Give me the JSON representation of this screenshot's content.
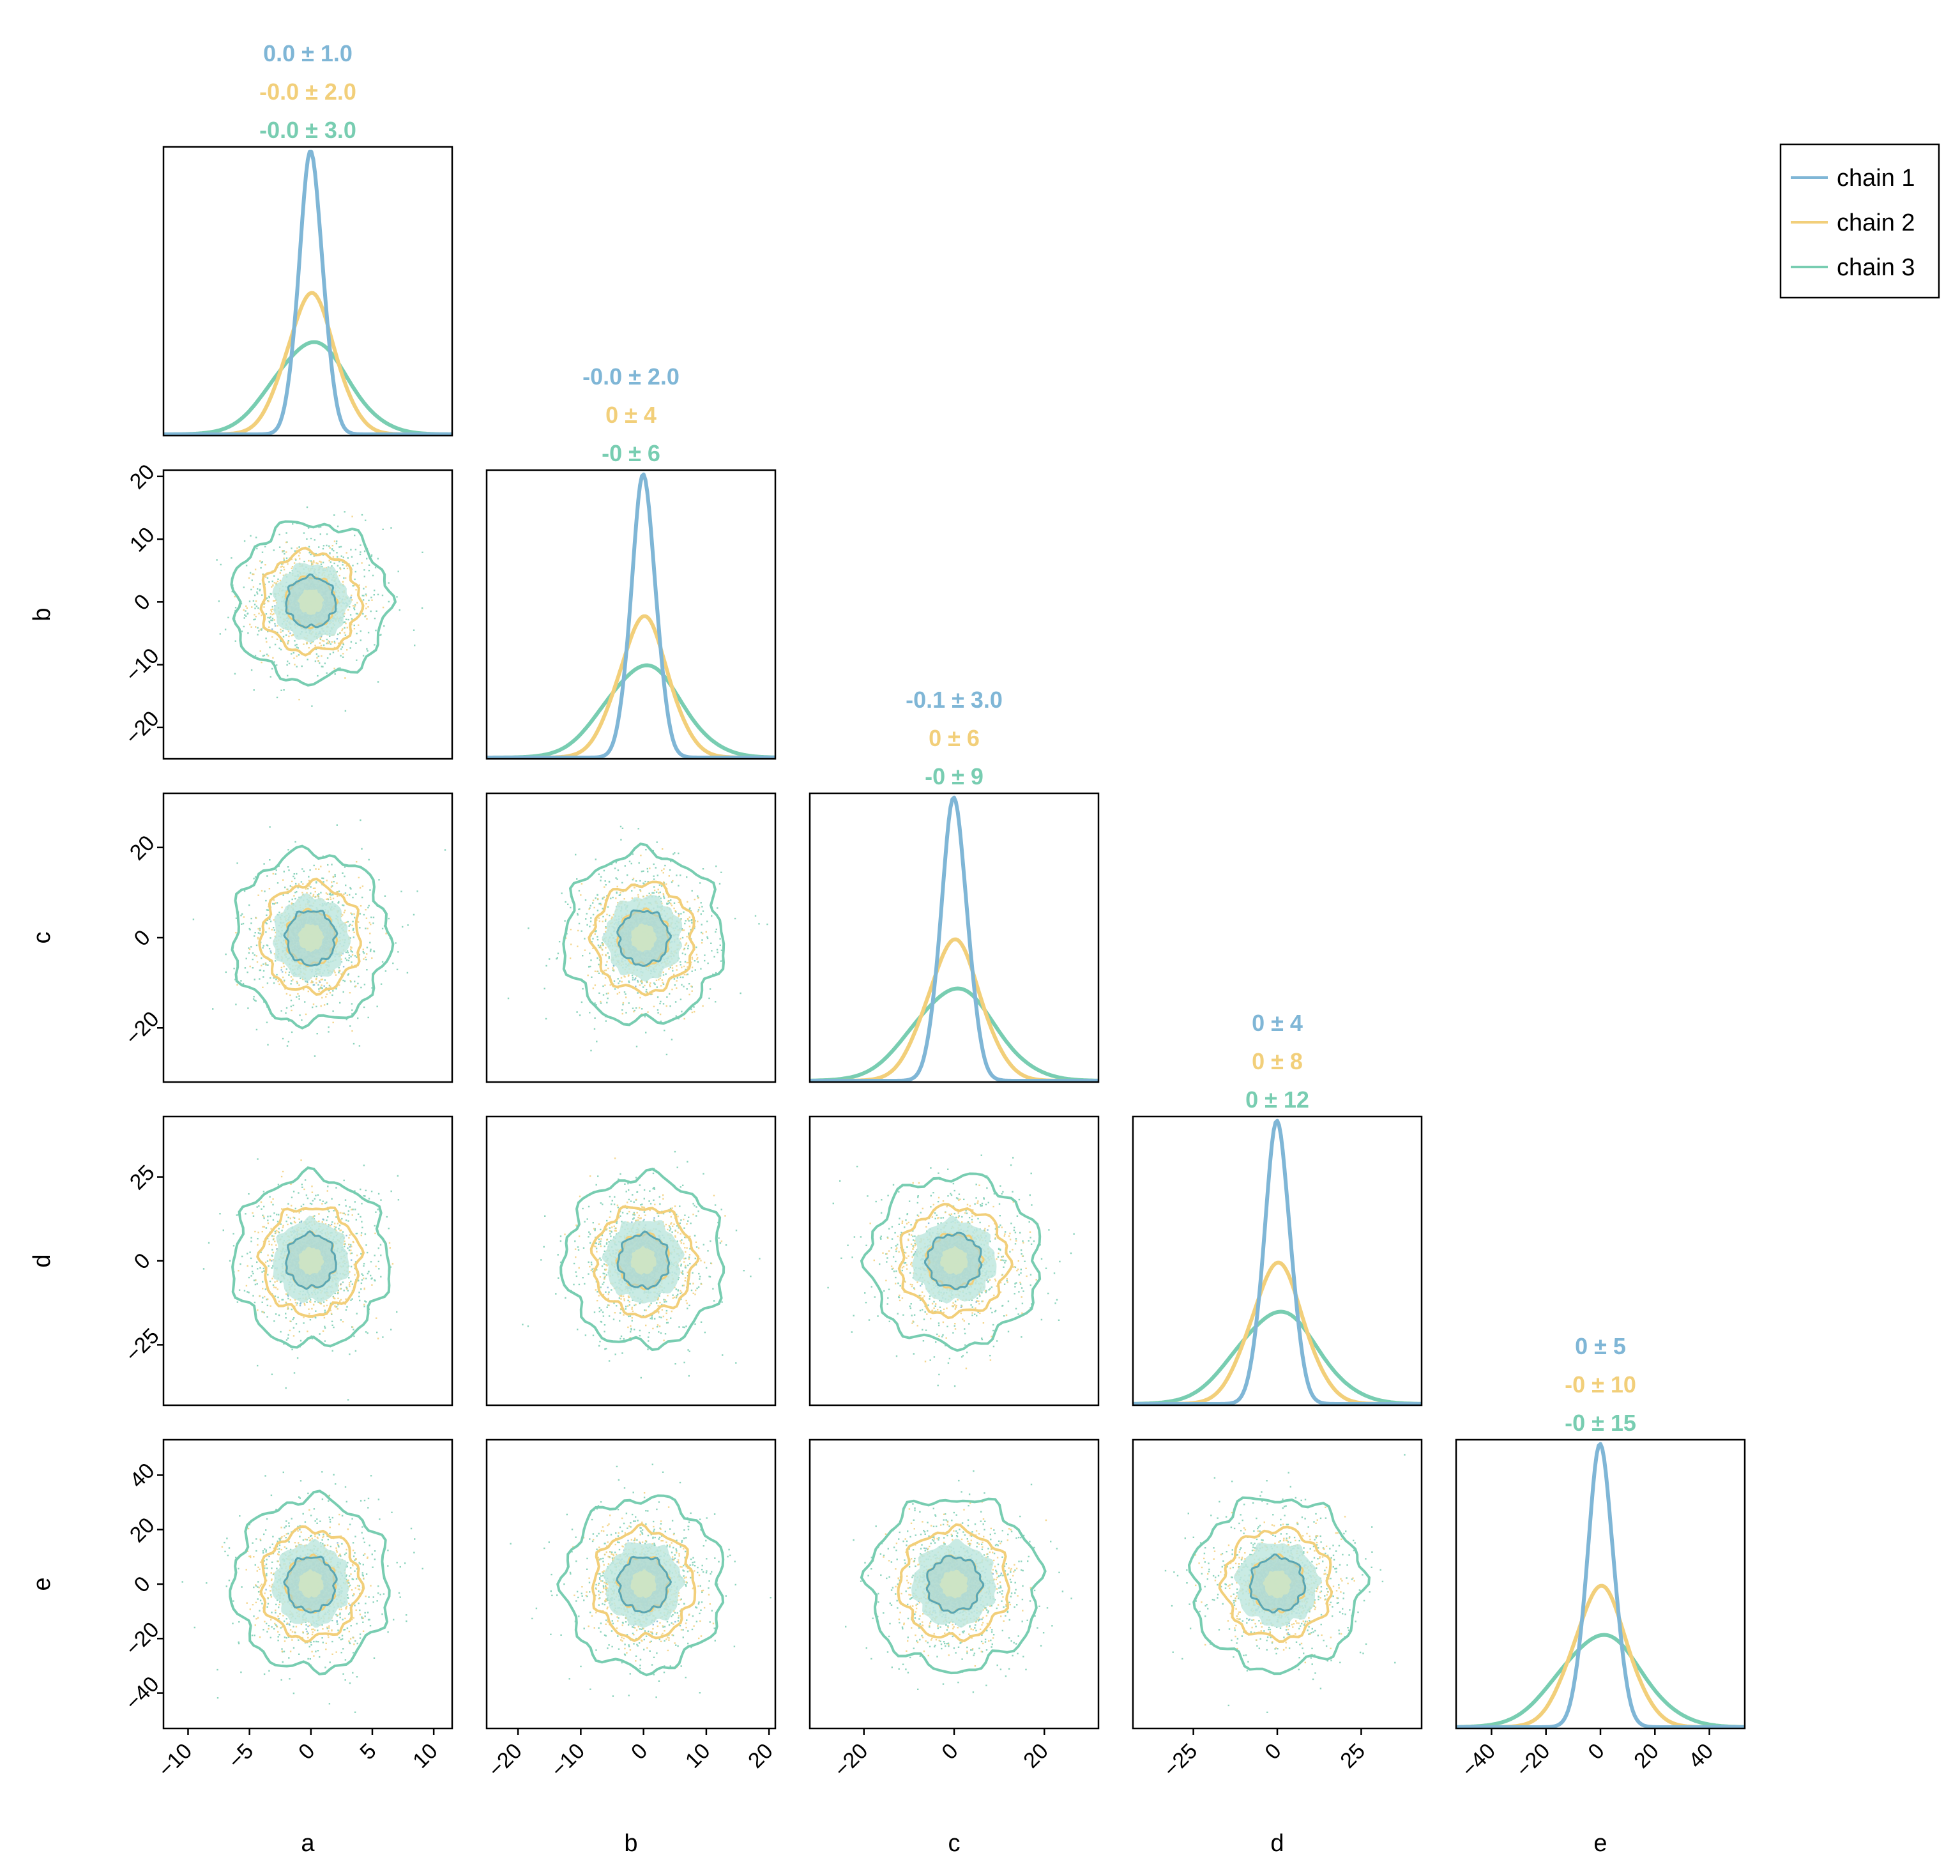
{
  "chart_data": {
    "type": "corner",
    "parameters": [
      "a",
      "b",
      "c",
      "d",
      "e"
    ],
    "x_ticks": {
      "a": [
        -10,
        -5,
        0,
        5,
        10
      ],
      "b": [
        -20,
        -10,
        0,
        10,
        20
      ],
      "c": [
        -20,
        0,
        20
      ],
      "d": [
        -25,
        0,
        25
      ],
      "e": [
        -40,
        -20,
        0,
        20,
        40
      ]
    },
    "y_ticks": {
      "b": [
        -20,
        -10,
        0,
        10,
        20
      ],
      "c": [
        -20,
        0,
        20
      ],
      "d": [
        -25,
        0,
        25
      ],
      "e": [
        -40,
        -20,
        0,
        20,
        40
      ]
    },
    "ranges": {
      "a": [
        -12,
        11.5
      ],
      "b": [
        -25,
        21
      ],
      "c": [
        -32,
        32
      ],
      "d": [
        -43,
        43
      ],
      "e": [
        -53,
        53
      ]
    },
    "series": [
      {
        "name": "chain 1",
        "color": "#7fb6d6",
        "sd": {
          "a": 1,
          "b": 2,
          "c": 3,
          "d": 4,
          "e": 5
        },
        "stats": [
          "0.0 ± 1.0",
          "-0.0 ± 2.0",
          "-0.1 ± 3.0",
          "0 ± 4",
          "0 ± 5"
        ]
      },
      {
        "name": "chain 2",
        "color": "#f2cf7a",
        "sd": {
          "a": 2,
          "b": 4,
          "c": 6,
          "d": 8,
          "e": 10
        },
        "stats": [
          "-0.0 ± 2.0",
          "0 ± 4",
          "0 ± 6",
          "0 ± 8",
          "-0 ± 10"
        ]
      },
      {
        "name": "chain 3",
        "color": "#78cdb1",
        "sd": {
          "a": 3,
          "b": 6,
          "c": 9,
          "d": 12,
          "e": 15
        },
        "stats": [
          "-0.0 ± 3.0",
          "-0 ± 6",
          "-0 ± 9",
          "0 ± 12",
          "-0 ± 15"
        ]
      }
    ],
    "legend": {
      "position": "top-right",
      "entries": [
        "chain 1",
        "chain 2",
        "chain 3"
      ]
    },
    "diagonal": "kde",
    "off_diagonal": "scatter + filled contours",
    "grid": false
  }
}
